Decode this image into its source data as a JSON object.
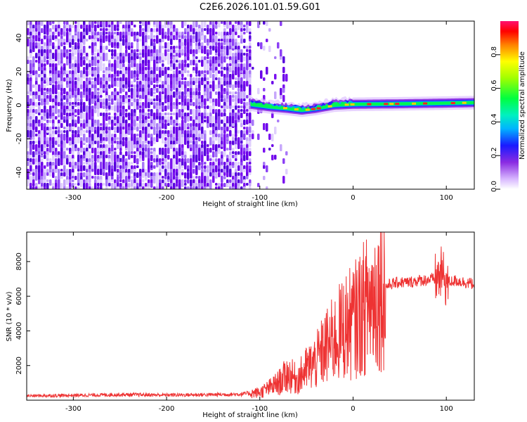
{
  "title": "C2E6.2026.101.01.59.G01",
  "chart_data": [
    {
      "type": "heatmap",
      "title": "C2E6.2026.101.01.59.G01",
      "xlabel": "Height of straight line (km)",
      "ylabel": "Frequency (Hz)",
      "xlim": [
        -350,
        130
      ],
      "ylim": [
        -50,
        50
      ],
      "xticks": [
        "-300",
        "-200",
        "-100",
        "0",
        "100"
      ],
      "yticks": [
        "-40",
        "-20",
        "0",
        "20",
        "40"
      ],
      "colorbar": {
        "label": "Normalized spectral amplitude",
        "range": [
          0,
          1
        ],
        "ticks": [
          "0.0",
          "0.2",
          "0.4",
          "0.6",
          "0.8"
        ]
      },
      "ridge": {
        "description": "Narrow high-amplitude band near 0 Hz from about -110 km upward",
        "points": [
          {
            "x": -110,
            "y": 0.5
          },
          {
            "x": -90,
            "y": -1
          },
          {
            "x": -70,
            "y": -2
          },
          {
            "x": -55,
            "y": -3
          },
          {
            "x": -40,
            "y": -2
          },
          {
            "x": -20,
            "y": 0
          },
          {
            "x": 0,
            "y": 0.5
          },
          {
            "x": 50,
            "y": 0.8
          },
          {
            "x": 100,
            "y": 1.2
          },
          {
            "x": 130,
            "y": 1.5
          }
        ]
      }
    },
    {
      "type": "line",
      "xlabel": "Height of straight line (km)",
      "ylabel": "SNR (10 * v/v)",
      "xlim": [
        -350,
        130
      ],
      "ylim": [
        0,
        9700
      ],
      "xticks": [
        "-300",
        "-200",
        "-100",
        "0",
        "100"
      ],
      "yticks": [
        "2000",
        "4000",
        "6000",
        "8000"
      ],
      "color": "#ee3333",
      "series": [
        {
          "name": "SNR",
          "x": [
            -350,
            -300,
            -250,
            -200,
            -150,
            -120,
            -100,
            -90,
            -80,
            -70,
            -60,
            -50,
            -40,
            -30,
            -20,
            -10,
            0,
            10,
            20,
            30,
            40,
            50,
            60,
            70,
            80,
            90,
            95,
            100,
            110,
            120,
            130
          ],
          "y": [
            250,
            280,
            320,
            300,
            320,
            350,
            450,
            700,
            1000,
            1500,
            1200,
            1800,
            2200,
            3000,
            3500,
            4200,
            4500,
            5200,
            5800,
            6400,
            6700,
            6800,
            6800,
            6900,
            6950,
            7000,
            7300,
            6800,
            6900,
            6800,
            6700
          ]
        }
      ]
    }
  ]
}
